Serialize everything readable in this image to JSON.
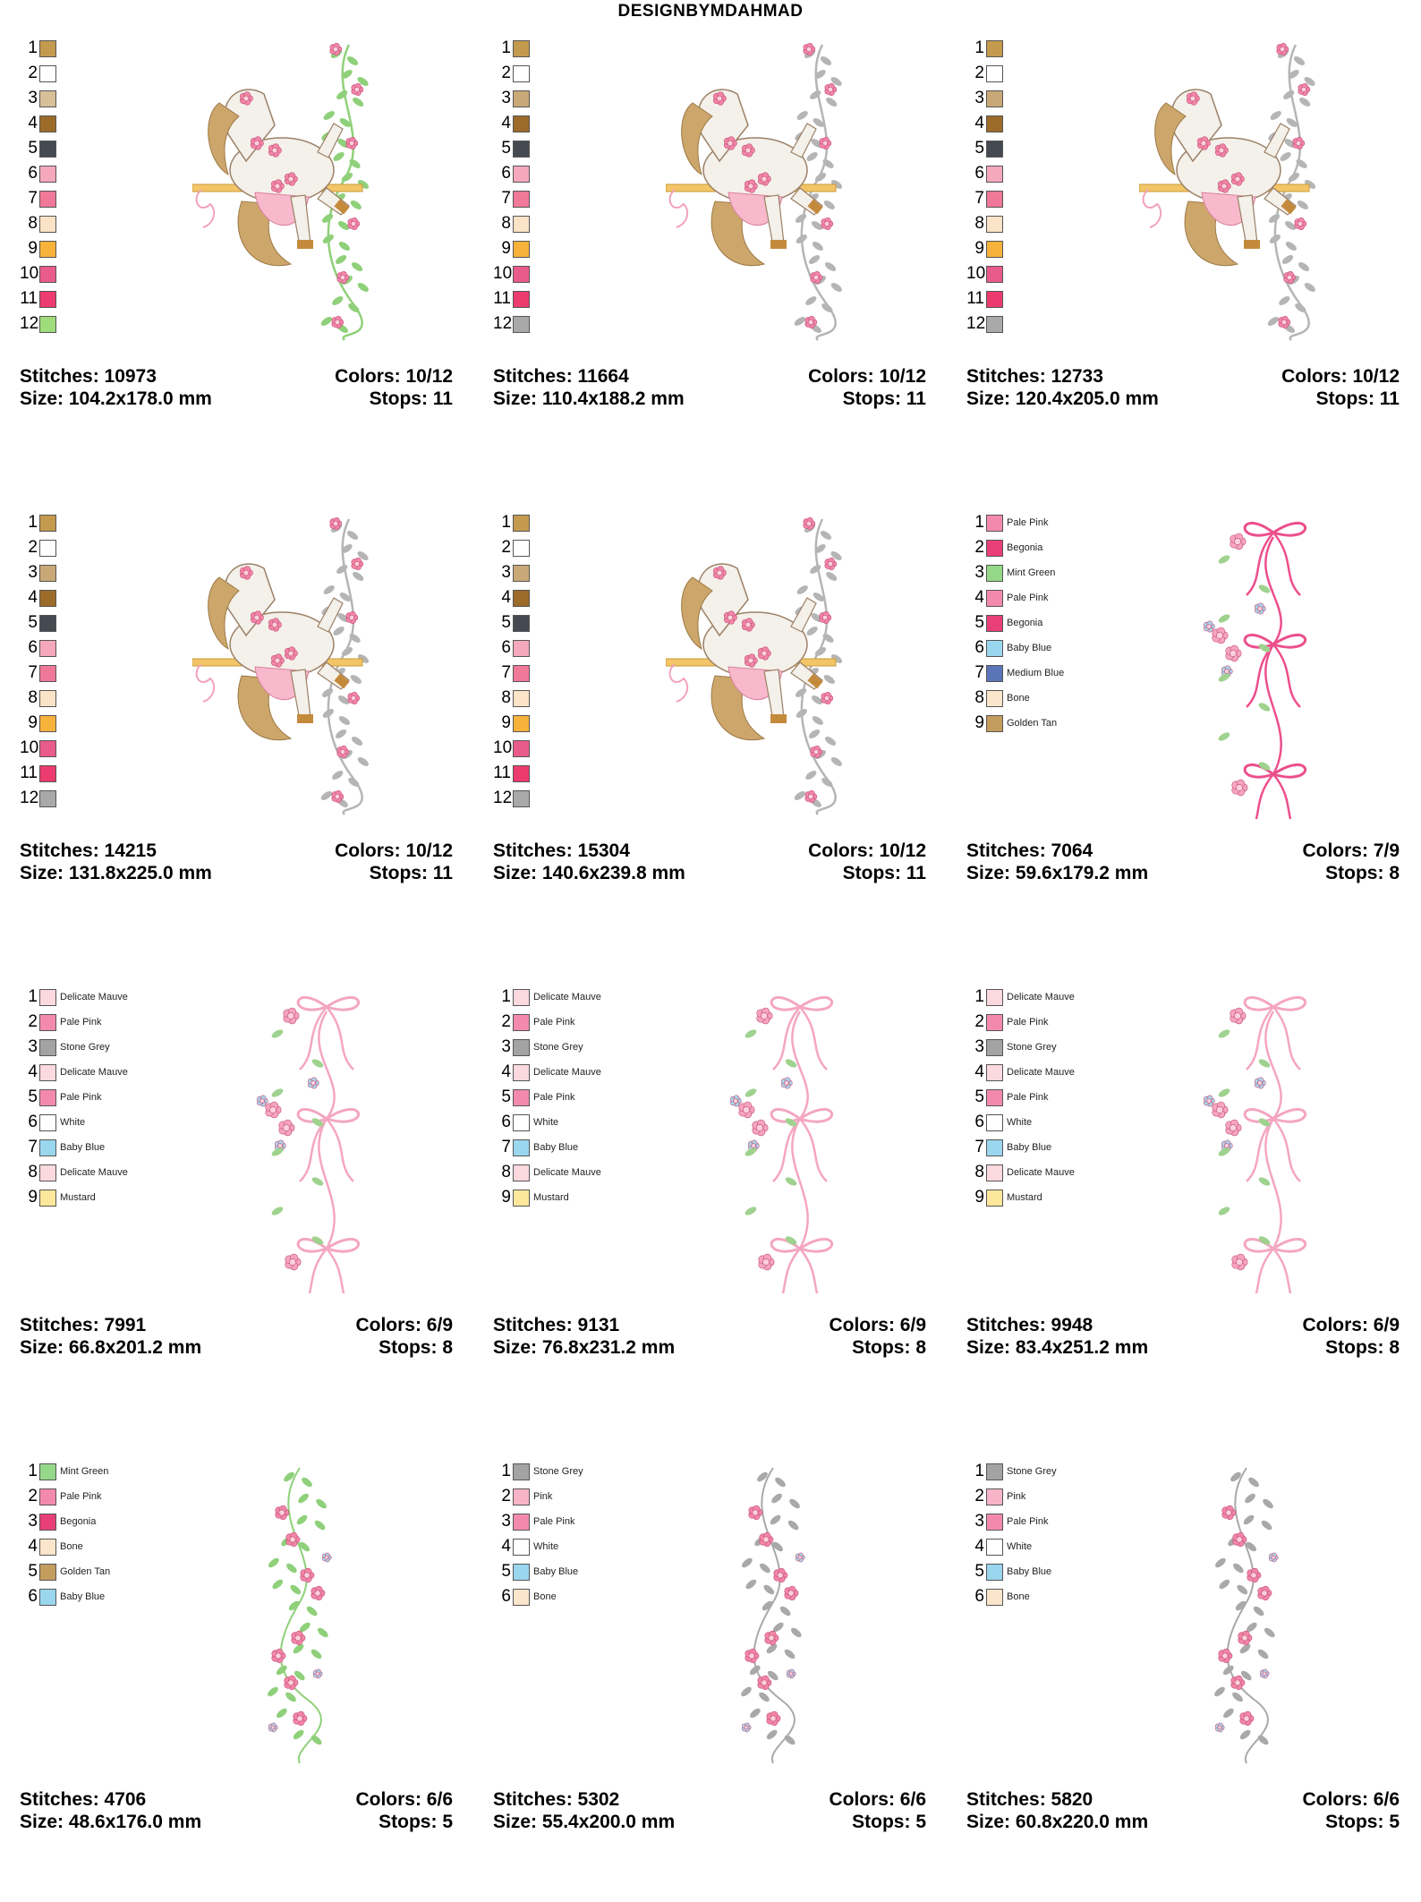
{
  "header": {
    "title": "DESIGNBYMDAHMAD"
  },
  "palettes": {
    "horse": [
      "#c49a4e",
      "#ffffff",
      "#d7bf98",
      "#9c6b2a",
      "#454a52",
      "#f5a7bb",
      "#f07898",
      "#fbe3c7",
      "#f7b23c",
      "#e85b8a",
      "#ec3b6e",
      "#9fdc7c"
    ],
    "horse_grey": [
      "#c49a4e",
      "#ffffff",
      "#c9a878",
      "#9c6b2a",
      "#454a52",
      "#f5a7bb",
      "#f07898",
      "#fbe3c7",
      "#f7b23c",
      "#e85b8a",
      "#ec3b6e",
      "#a9a9a9"
    ],
    "bow1": [
      {
        "name": "Pale Pink",
        "color": "#f38aae"
      },
      {
        "name": "Begonia",
        "color": "#e93f78"
      },
      {
        "name": "Mint Green",
        "color": "#95d889"
      },
      {
        "name": "Pale Pink",
        "color": "#f38aae"
      },
      {
        "name": "Begonia",
        "color": "#e93f78"
      },
      {
        "name": "Baby Blue",
        "color": "#9ad7ee"
      },
      {
        "name": "Medium Blue",
        "color": "#5a74b8"
      },
      {
        "name": "Bone",
        "color": "#fbe6cc"
      },
      {
        "name": "Golden Tan",
        "color": "#c49d5e"
      }
    ],
    "bow2": [
      {
        "name": "Delicate Mauve",
        "color": "#fbd9df"
      },
      {
        "name": "Pale Pink",
        "color": "#f38aae"
      },
      {
        "name": "Stone Grey",
        "color": "#a3a3a3"
      },
      {
        "name": "Delicate Mauve",
        "color": "#fbd9df"
      },
      {
        "name": "Pale Pink",
        "color": "#f38aae"
      },
      {
        "name": "White",
        "color": "#ffffff"
      },
      {
        "name": "Baby Blue",
        "color": "#9ad7ee"
      },
      {
        "name": "Delicate Mauve",
        "color": "#fbd9df"
      },
      {
        "name": "Mustard",
        "color": "#fde79a"
      }
    ],
    "vine1": [
      {
        "name": "Mint Green",
        "color": "#95d889"
      },
      {
        "name": "Pale Pink",
        "color": "#f38aae"
      },
      {
        "name": "Begonia",
        "color": "#e93f78"
      },
      {
        "name": "Bone",
        "color": "#fbe6cc"
      },
      {
        "name": "Golden Tan",
        "color": "#c49d5e"
      },
      {
        "name": "Baby Blue",
        "color": "#9ad7ee"
      }
    ],
    "vine2": [
      {
        "name": "Stone Grey",
        "color": "#a3a3a3"
      },
      {
        "name": "Pink",
        "color": "#f7b4c8"
      },
      {
        "name": "Pale Pink",
        "color": "#f38aae"
      },
      {
        "name": "White",
        "color": "#ffffff"
      },
      {
        "name": "Baby Blue",
        "color": "#9ad7ee"
      },
      {
        "name": "Bone",
        "color": "#fbe6cc"
      }
    ]
  },
  "designs": [
    {
      "palette": "horse",
      "art": "horse",
      "leaf": "#8fd07a",
      "stitches": "Stitches: 10973",
      "colors": "Colors: 10/12",
      "size": "Size: 104.2x178.0 mm",
      "stops": "Stops: 11"
    },
    {
      "palette": "horse_grey",
      "art": "horse",
      "leaf": "#b5b5b5",
      "stitches": "Stitches: 11664",
      "colors": "Colors: 10/12",
      "size": "Size: 110.4x188.2 mm",
      "stops": "Stops: 11"
    },
    {
      "palette": "horse_grey",
      "art": "horse",
      "leaf": "#b5b5b5",
      "stitches": "Stitches: 12733",
      "colors": "Colors: 10/12",
      "size": "Size: 120.4x205.0 mm",
      "stops": "Stops: 11"
    },
    {
      "palette": "horse_grey",
      "art": "horse",
      "leaf": "#b5b5b5",
      "stitches": "Stitches: 14215",
      "colors": "Colors: 10/12",
      "size": "Size: 131.8x225.0 mm",
      "stops": "Stops: 11"
    },
    {
      "palette": "horse_grey",
      "art": "horse",
      "leaf": "#b5b5b5",
      "stitches": "Stitches: 15304",
      "colors": "Colors: 10/12",
      "size": "Size: 140.6x239.8 mm",
      "stops": "Stops: 11"
    },
    {
      "palette": "bow1",
      "art": "bow",
      "ribbon": "#ec4f8c",
      "stitches": "Stitches: 7064",
      "colors": "Colors: 7/9",
      "size": "Size: 59.6x179.2 mm",
      "stops": "Stops: 8"
    },
    {
      "palette": "bow2",
      "art": "bow",
      "ribbon": "#f4a6c2",
      "stitches": "Stitches: 7991",
      "colors": "Colors: 6/9",
      "size": "Size: 66.8x201.2 mm",
      "stops": "Stops: 8"
    },
    {
      "palette": "bow2",
      "art": "bow",
      "ribbon": "#f4a6c2",
      "stitches": "Stitches: 9131",
      "colors": "Colors: 6/9",
      "size": "Size: 76.8x231.2 mm",
      "stops": "Stops: 8"
    },
    {
      "palette": "bow2",
      "art": "bow",
      "ribbon": "#f4a6c2",
      "stitches": "Stitches: 9948",
      "colors": "Colors: 6/9",
      "size": "Size: 83.4x251.2 mm",
      "stops": "Stops: 8"
    },
    {
      "palette": "vine1",
      "art": "vine",
      "leaf": "#8fd07a",
      "stitches": "Stitches: 4706",
      "colors": "Colors: 6/6",
      "size": "Size: 48.6x176.0 mm",
      "stops": "Stops: 5"
    },
    {
      "palette": "vine2",
      "art": "vine",
      "leaf": "#a9a9a9",
      "stitches": "Stitches: 5302",
      "colors": "Colors: 6/6",
      "size": "Size: 55.4x200.0 mm",
      "stops": "Stops: 5"
    },
    {
      "palette": "vine2",
      "art": "vine",
      "leaf": "#a9a9a9",
      "stitches": "Stitches: 5820",
      "colors": "Colors: 6/6",
      "size": "Size: 60.8x220.0 mm",
      "stops": "Stops: 5"
    }
  ]
}
